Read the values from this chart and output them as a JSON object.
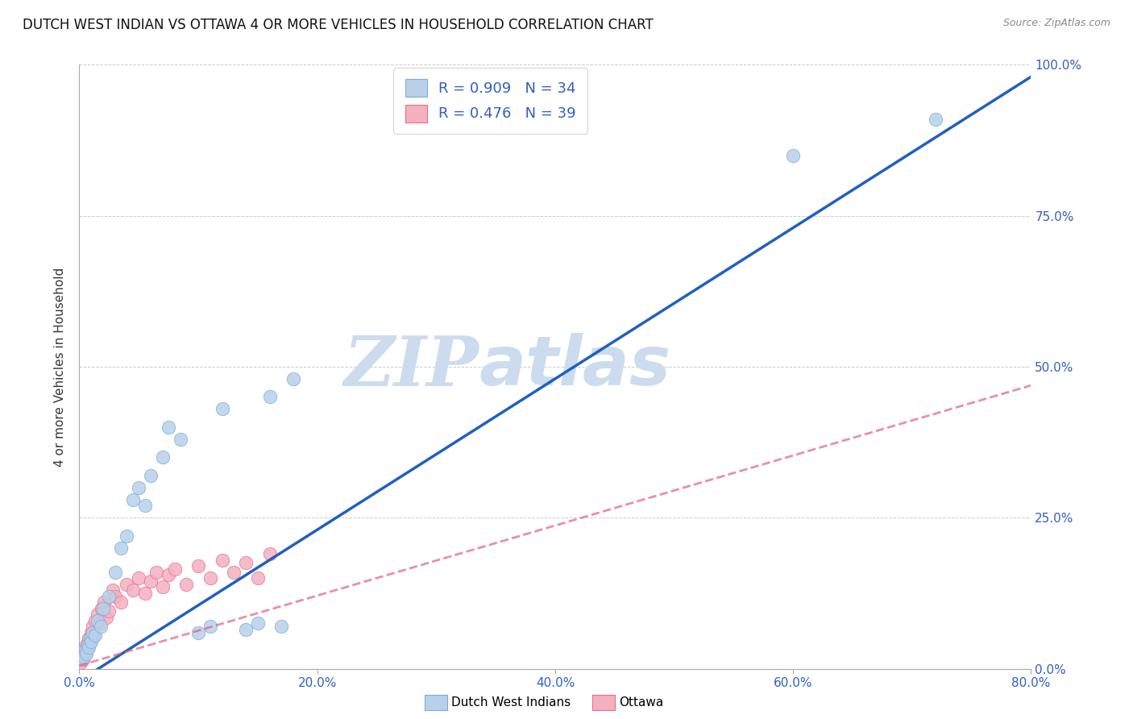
{
  "title": "DUTCH WEST INDIAN VS OTTAWA 4 OR MORE VEHICLES IN HOUSEHOLD CORRELATION CHART",
  "source": "Source: ZipAtlas.com",
  "ylabel_label": "4 or more Vehicles in Household",
  "xlabel_vals": [
    0.0,
    20.0,
    40.0,
    60.0,
    80.0
  ],
  "ylabel_vals": [
    0.0,
    25.0,
    50.0,
    75.0,
    100.0
  ],
  "xlim": [
    0.0,
    80.0
  ],
  "ylim": [
    0.0,
    100.0
  ],
  "blue_R": 0.909,
  "blue_N": 34,
  "pink_R": 0.476,
  "pink_N": 39,
  "blue_face": "#b8d0ea",
  "blue_edge": "#7aadd4",
  "pink_face": "#f5b0c0",
  "pink_edge": "#e07090",
  "blue_line": "#2060c0",
  "pink_line": "#e06080",
  "watermark_color": "#ccdcee",
  "grid_color": "#cccccc",
  "tick_color": "#3060c0",
  "bg_color": "#ffffff",
  "title_fontsize": 12,
  "legend_fontsize": 13,
  "blue_x": [
    0.2,
    0.4,
    0.5,
    0.6,
    0.7,
    0.8,
    0.9,
    1.0,
    1.1,
    1.3,
    1.5,
    1.8,
    2.0,
    2.5,
    3.0,
    3.5,
    4.0,
    4.5,
    5.0,
    5.5,
    6.0,
    7.0,
    7.5,
    8.5,
    10.0,
    11.0,
    12.0,
    14.0,
    15.0,
    16.0,
    17.0,
    18.0,
    60.0,
    72.0
  ],
  "blue_y": [
    1.5,
    2.0,
    3.0,
    2.5,
    4.0,
    3.5,
    5.0,
    4.5,
    6.0,
    5.5,
    8.0,
    7.0,
    10.0,
    12.0,
    16.0,
    20.0,
    22.0,
    28.0,
    30.0,
    27.0,
    32.0,
    35.0,
    40.0,
    38.0,
    6.0,
    7.0,
    43.0,
    6.5,
    7.5,
    45.0,
    7.0,
    48.0,
    85.0,
    91.0
  ],
  "pink_x": [
    0.1,
    0.2,
    0.3,
    0.4,
    0.5,
    0.6,
    0.7,
    0.8,
    0.9,
    1.0,
    1.1,
    1.2,
    1.3,
    1.5,
    1.7,
    1.9,
    2.1,
    2.3,
    2.5,
    2.8,
    3.0,
    3.5,
    4.0,
    4.5,
    5.0,
    5.5,
    6.0,
    6.5,
    7.0,
    7.5,
    8.0,
    9.0,
    10.0,
    11.0,
    12.0,
    13.0,
    14.0,
    15.0,
    16.0
  ],
  "pink_y": [
    1.0,
    2.0,
    1.5,
    3.0,
    2.5,
    4.0,
    3.5,
    5.0,
    4.5,
    6.0,
    7.0,
    5.5,
    8.0,
    9.0,
    7.5,
    10.0,
    11.0,
    8.5,
    9.5,
    13.0,
    12.0,
    11.0,
    14.0,
    13.0,
    15.0,
    12.5,
    14.5,
    16.0,
    13.5,
    15.5,
    16.5,
    14.0,
    17.0,
    15.0,
    18.0,
    16.0,
    17.5,
    15.0,
    19.0
  ]
}
